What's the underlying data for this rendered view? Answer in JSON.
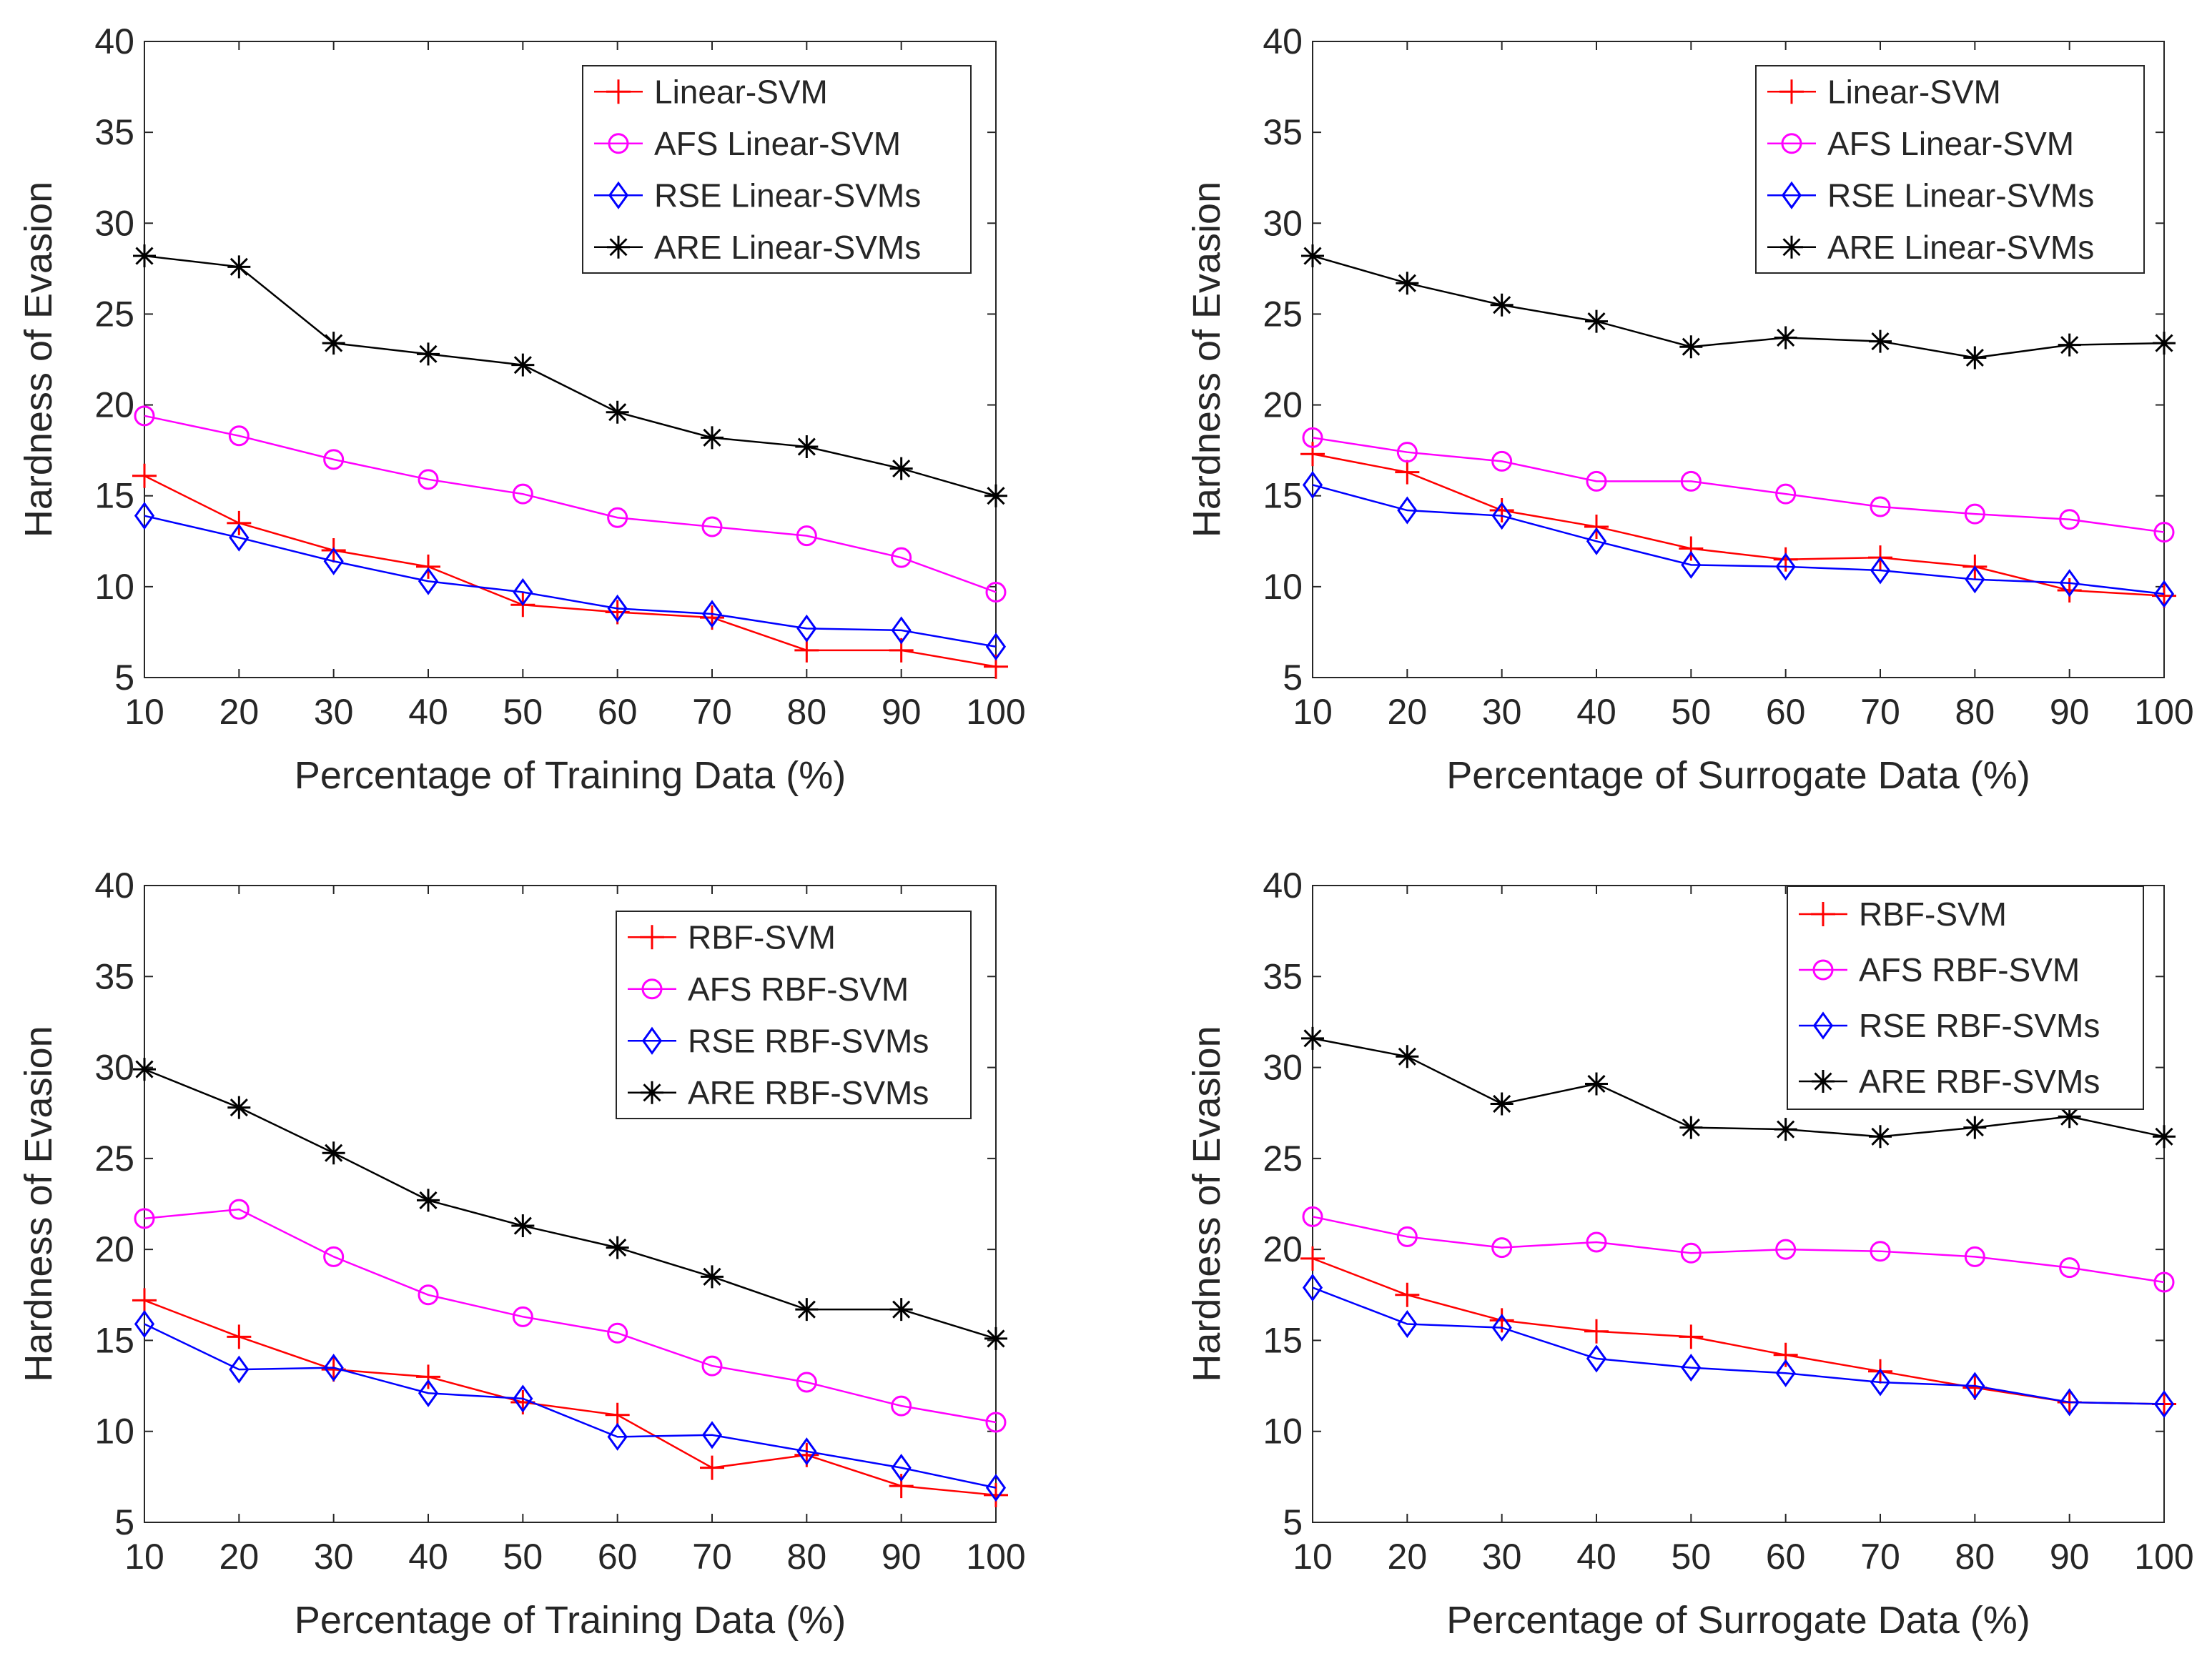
{
  "figure": {
    "background": "#ffffff",
    "axis_color": "#262626"
  },
  "chart_data": [
    {
      "type": "line",
      "position": "top-left",
      "xlabel": "Percentage of Training Data (%)",
      "ylabel": "Hardness of Evasion",
      "xlim": [
        10,
        100
      ],
      "ylim": [
        5,
        40
      ],
      "xticks": [
        10,
        20,
        30,
        40,
        50,
        60,
        70,
        80,
        90,
        100
      ],
      "yticks": [
        5,
        10,
        15,
        20,
        25,
        30,
        35,
        40
      ],
      "legend_location": "top-right",
      "x": [
        10,
        20,
        30,
        40,
        50,
        60,
        70,
        80,
        90,
        100
      ],
      "series": [
        {
          "name": "Linear-SVM",
          "color": "#ff0000",
          "marker": "plus",
          "values": [
            16.1,
            13.5,
            12.0,
            11.1,
            9.0,
            8.6,
            8.3,
            6.5,
            6.5,
            5.6
          ]
        },
        {
          "name": "AFS Linear-SVM",
          "color": "#ff00ff",
          "marker": "circle",
          "values": [
            19.4,
            18.3,
            17.0,
            15.9,
            15.1,
            13.8,
            13.3,
            12.8,
            11.6,
            9.7
          ]
        },
        {
          "name": "RSE Linear-SVMs",
          "color": "#0000ff",
          "marker": "diamond",
          "values": [
            13.9,
            12.7,
            11.4,
            10.3,
            9.7,
            8.8,
            8.5,
            7.7,
            7.6,
            6.7
          ]
        },
        {
          "name": "ARE Linear-SVMs",
          "color": "#000000",
          "marker": "star",
          "values": [
            28.2,
            27.6,
            23.4,
            22.8,
            22.2,
            19.6,
            18.2,
            17.7,
            16.5,
            15.0
          ]
        }
      ]
    },
    {
      "type": "line",
      "position": "top-right",
      "xlabel": "Percentage of Surrogate Data (%)",
      "ylabel": "Hardness of Evasion",
      "xlim": [
        10,
        100
      ],
      "ylim": [
        5,
        40
      ],
      "xticks": [
        10,
        20,
        30,
        40,
        50,
        60,
        70,
        80,
        90,
        100
      ],
      "yticks": [
        5,
        10,
        15,
        20,
        25,
        30,
        35,
        40
      ],
      "legend_location": "top-right",
      "x": [
        10,
        20,
        30,
        40,
        50,
        60,
        70,
        80,
        90,
        100
      ],
      "series": [
        {
          "name": "Linear-SVM",
          "color": "#ff0000",
          "marker": "plus",
          "values": [
            17.3,
            16.3,
            14.2,
            13.3,
            12.1,
            11.5,
            11.6,
            11.1,
            9.8,
            9.5
          ]
        },
        {
          "name": "AFS Linear-SVM",
          "color": "#ff00ff",
          "marker": "circle",
          "values": [
            18.2,
            17.4,
            16.9,
            15.8,
            15.8,
            15.1,
            14.4,
            14.0,
            13.7,
            13.0
          ]
        },
        {
          "name": "RSE Linear-SVMs",
          "color": "#0000ff",
          "marker": "diamond",
          "values": [
            15.6,
            14.2,
            13.9,
            12.5,
            11.2,
            11.1,
            10.9,
            10.4,
            10.2,
            9.6
          ]
        },
        {
          "name": "ARE Linear-SVMs",
          "color": "#000000",
          "marker": "star",
          "values": [
            28.2,
            26.7,
            25.5,
            24.6,
            23.2,
            23.7,
            23.5,
            22.6,
            23.3,
            23.4
          ]
        }
      ]
    },
    {
      "type": "line",
      "position": "bottom-left",
      "xlabel": "Percentage of Training Data (%)",
      "ylabel": "Hardness of Evasion",
      "xlim": [
        10,
        100
      ],
      "ylim": [
        5,
        40
      ],
      "xticks": [
        10,
        20,
        30,
        40,
        50,
        60,
        70,
        80,
        90,
        100
      ],
      "yticks": [
        5,
        10,
        15,
        20,
        25,
        30,
        35,
        40
      ],
      "legend_location": "top-right",
      "x": [
        10,
        20,
        30,
        40,
        50,
        60,
        70,
        80,
        90,
        100
      ],
      "series": [
        {
          "name": "RBF-SVM",
          "color": "#ff0000",
          "marker": "plus",
          "values": [
            17.2,
            15.2,
            13.4,
            13.0,
            11.6,
            10.9,
            8.0,
            8.7,
            7.0,
            6.5
          ]
        },
        {
          "name": "AFS RBF-SVM",
          "color": "#ff00ff",
          "marker": "circle",
          "values": [
            21.7,
            22.2,
            19.6,
            17.5,
            16.3,
            15.4,
            13.6,
            12.7,
            11.4,
            10.5
          ]
        },
        {
          "name": "RSE RBF-SVMs",
          "color": "#0000ff",
          "marker": "diamond",
          "values": [
            15.9,
            13.4,
            13.5,
            12.1,
            11.8,
            9.7,
            9.8,
            8.9,
            8.0,
            6.9
          ]
        },
        {
          "name": "ARE RBF-SVMs",
          "color": "#000000",
          "marker": "star",
          "values": [
            29.9,
            27.8,
            25.3,
            22.7,
            21.3,
            20.1,
            18.5,
            16.7,
            16.7,
            15.1
          ]
        }
      ]
    },
    {
      "type": "line",
      "position": "bottom-right",
      "xlabel": "Percentage of Surrogate Data (%)",
      "ylabel": "Hardness of Evasion",
      "xlim": [
        10,
        100
      ],
      "ylim": [
        5,
        40
      ],
      "xticks": [
        10,
        20,
        30,
        40,
        50,
        60,
        70,
        80,
        90,
        100
      ],
      "yticks": [
        5,
        10,
        15,
        20,
        25,
        30,
        35,
        40
      ],
      "legend_location": "top-right",
      "x": [
        10,
        20,
        30,
        40,
        50,
        60,
        70,
        80,
        90,
        100
      ],
      "series": [
        {
          "name": "RBF-SVM",
          "color": "#ff0000",
          "marker": "plus",
          "values": [
            19.5,
            17.5,
            16.1,
            15.5,
            15.2,
            14.2,
            13.3,
            12.4,
            11.6,
            11.5
          ]
        },
        {
          "name": "AFS RBF-SVM",
          "color": "#ff00ff",
          "marker": "circle",
          "values": [
            21.8,
            20.7,
            20.1,
            20.4,
            19.8,
            20.0,
            19.9,
            19.6,
            19.0,
            18.2
          ]
        },
        {
          "name": "RSE RBF-SVMs",
          "color": "#0000ff",
          "marker": "diamond",
          "values": [
            17.9,
            15.9,
            15.7,
            14.0,
            13.5,
            13.2,
            12.7,
            12.5,
            11.6,
            11.5
          ]
        },
        {
          "name": "ARE RBF-SVMs",
          "color": "#000000",
          "marker": "star",
          "values": [
            31.6,
            30.6,
            28.0,
            29.1,
            26.7,
            26.6,
            26.2,
            26.7,
            27.3,
            26.2
          ]
        }
      ]
    }
  ]
}
